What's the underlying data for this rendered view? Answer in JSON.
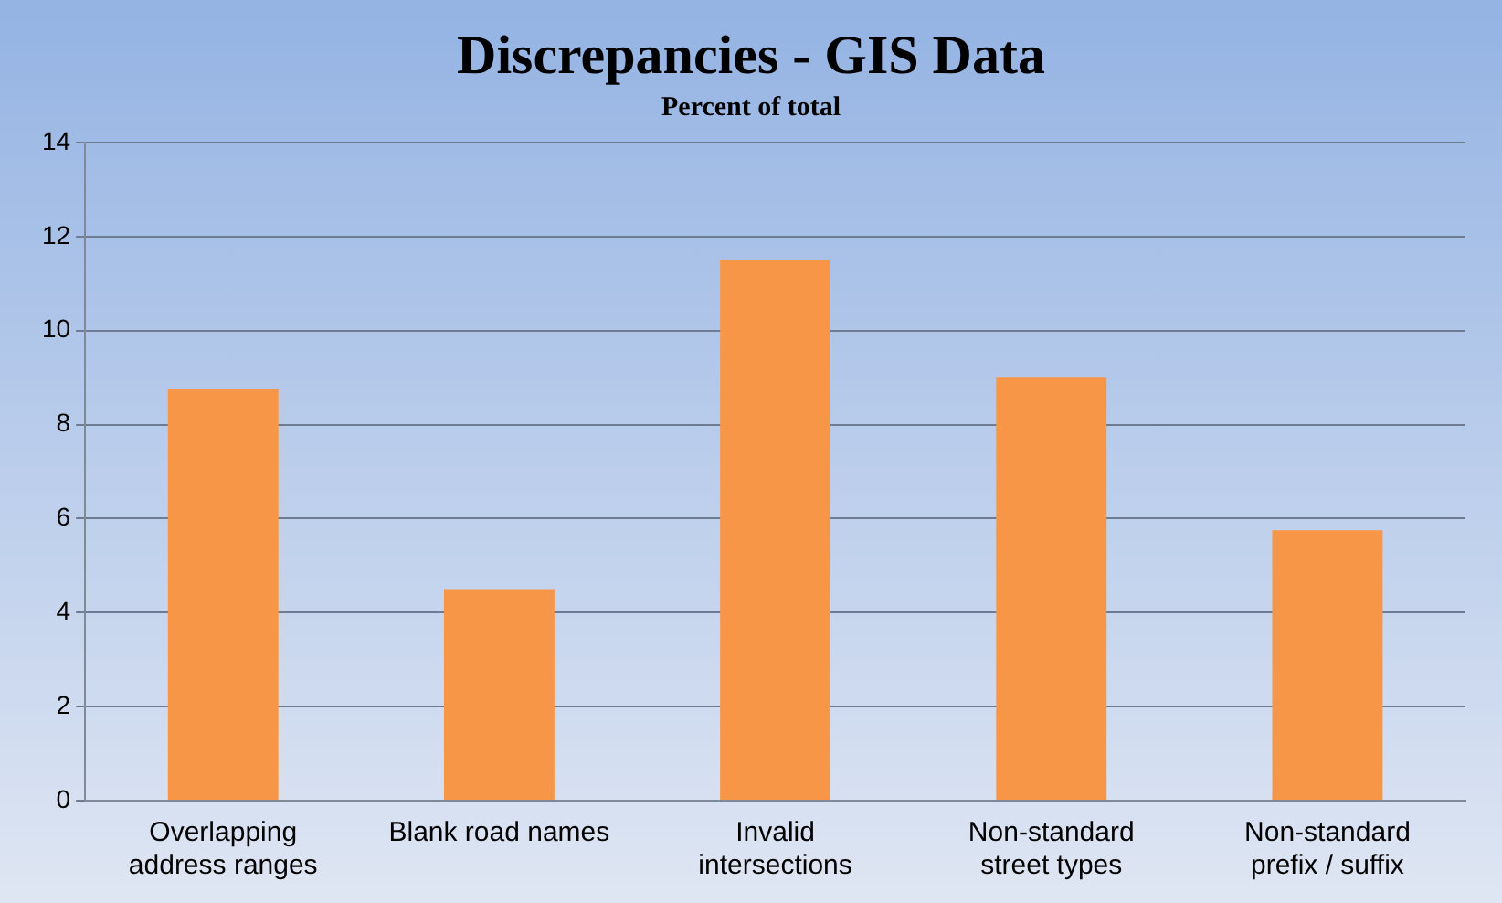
{
  "chart_data": {
    "type": "bar",
    "title": "Discrepancies - GIS Data",
    "subtitle": "Percent of total",
    "categories": [
      "Overlapping address ranges",
      "Blank road names",
      "Invalid intersections",
      "Non-standard street types",
      "Non-standard prefix / suffix"
    ],
    "values": [
      8.75,
      4.5,
      11.5,
      9,
      5.75
    ],
    "color": "#f79646",
    "ylim": [
      0,
      14
    ],
    "yticks": [
      0,
      2,
      4,
      6,
      8,
      10,
      12,
      14
    ],
    "grid": "y",
    "legend": false
  }
}
